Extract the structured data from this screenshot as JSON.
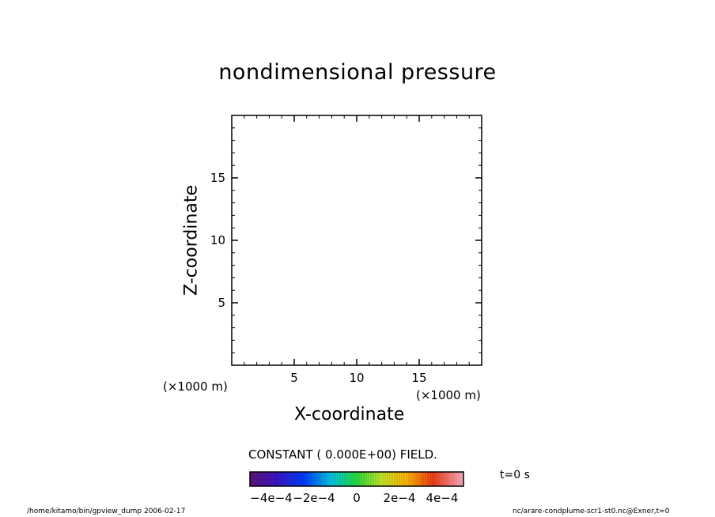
{
  "chart_data": {
    "type": "heatmap",
    "title": "nondimensional pressure",
    "xlabel": "X-coordinate",
    "ylabel": "Z-coordinate",
    "x_unit_left": "(×1000 m)",
    "x_unit_right": "(×1000 m)",
    "xlim": [
      0,
      20
    ],
    "ylim": [
      0,
      20
    ],
    "xticks": [
      5,
      10,
      15
    ],
    "yticks": [
      5,
      10,
      15
    ],
    "minor_tick_step": 1,
    "values": [],
    "note": "CONSTANT ( 0.000E+00) FIELD.",
    "colorbar": {
      "range": [
        -0.0005,
        0.0005
      ],
      "tick_labels": [
        "-4e-4",
        "-2e-4",
        "0",
        "2e-4",
        "4e-4"
      ],
      "tick_values": [
        -0.0004,
        -0.0002,
        0,
        0.0002,
        0.0004
      ]
    },
    "time_label": "t=0 s",
    "footer_left": "/home/kitamo/bin/gpview_dump  2006-02-17",
    "footer_right": "nc/arare-condplume-scr1-st0.nc@Exner,t=0"
  }
}
